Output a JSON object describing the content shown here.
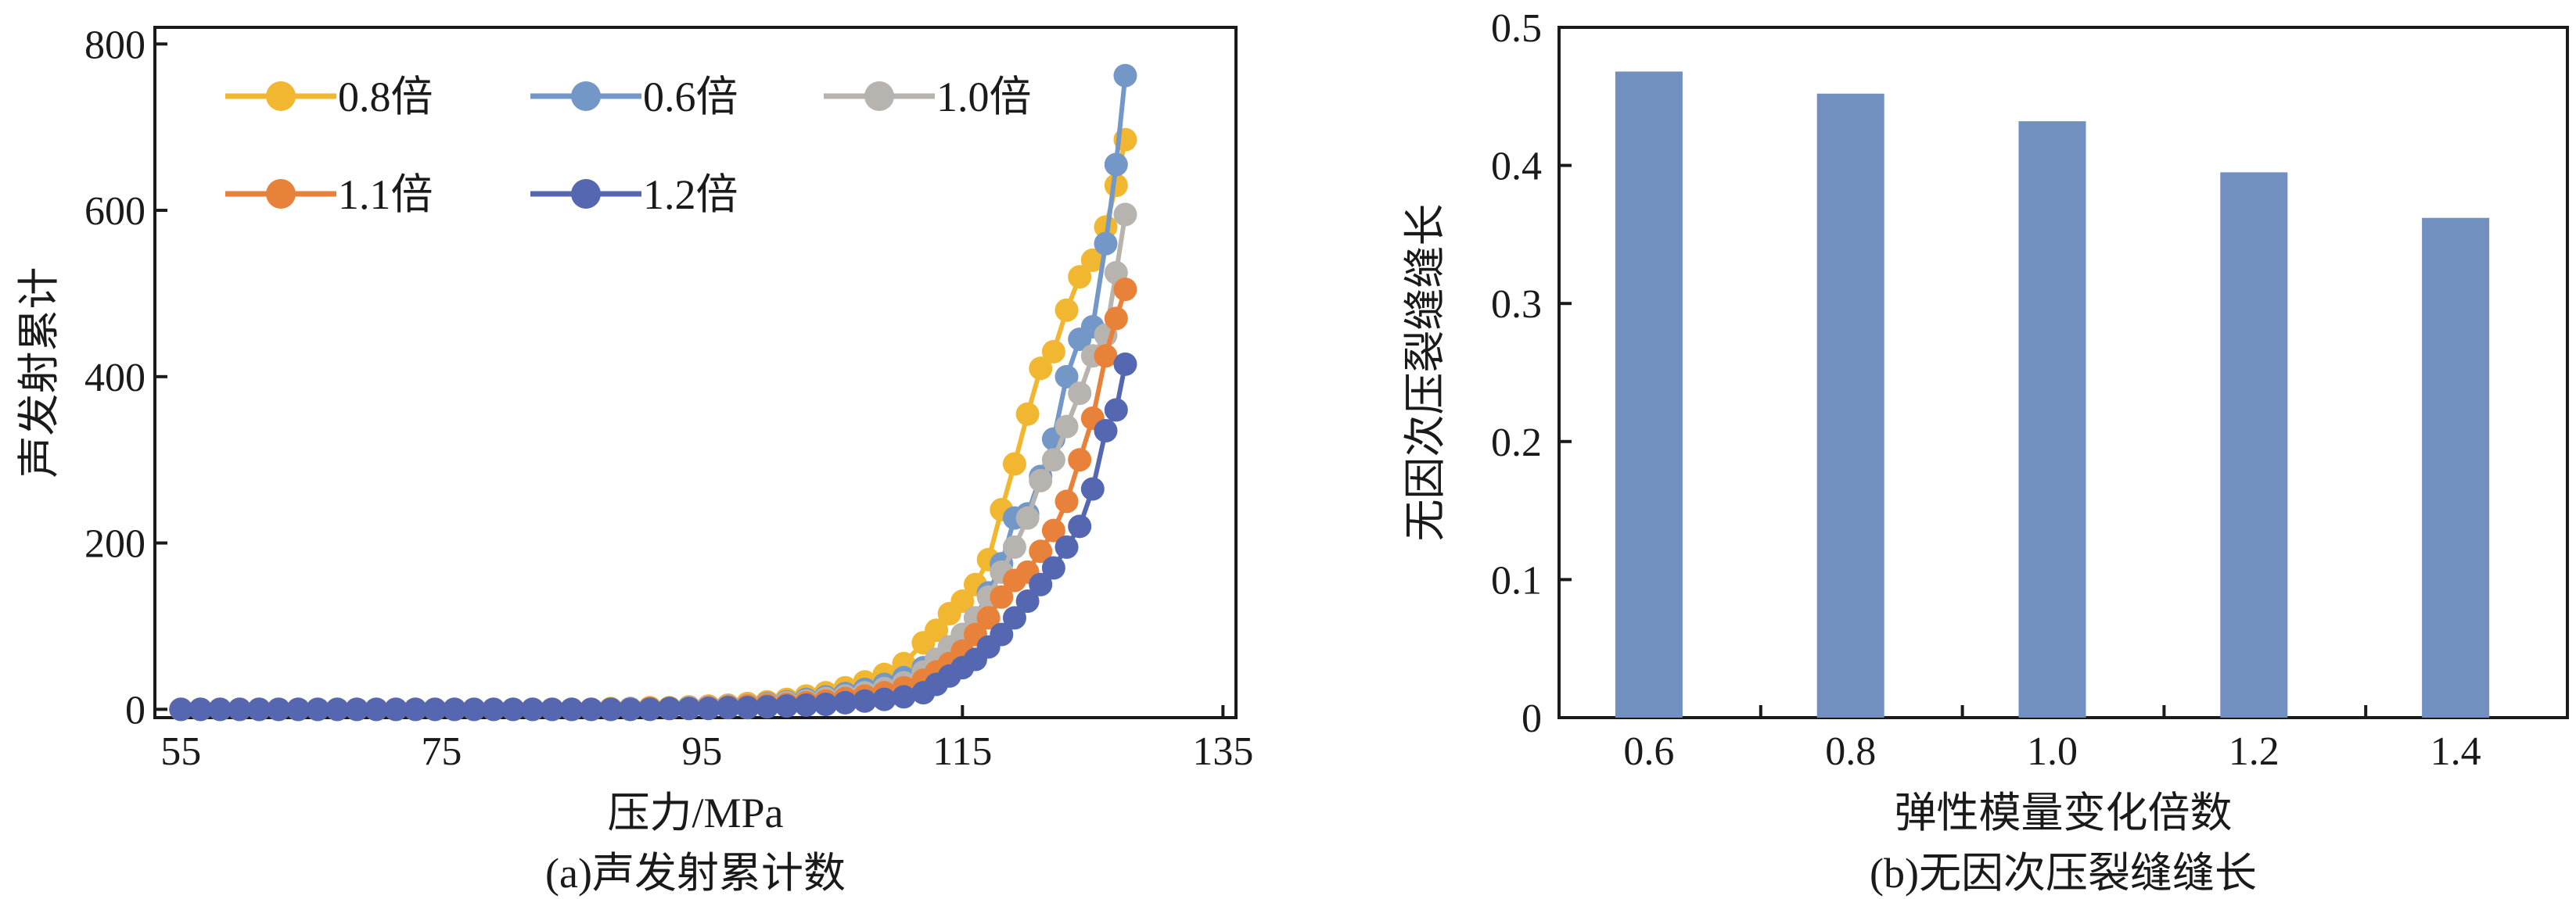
{
  "chart_data": [
    {
      "type": "line",
      "caption": "(a)声发射累计数",
      "xlabel": "压力/MPa",
      "ylabel": "声发射累计",
      "xlim": [
        53,
        136
      ],
      "ylim": [
        -10,
        820
      ],
      "xticks": [
        55,
        75,
        95,
        115,
        135
      ],
      "yticks": [
        0,
        200,
        400,
        600,
        800
      ],
      "grid": false,
      "legend_position": "top-left",
      "series": [
        {
          "name": "0.8倍",
          "color": "#F2B731",
          "x": [
            55,
            56.5,
            58,
            59.5,
            61,
            62.5,
            64,
            65.5,
            67,
            68.5,
            70,
            71.5,
            73,
            74.5,
            76,
            77.5,
            79,
            80.5,
            82,
            83.5,
            85,
            86.5,
            88,
            89.5,
            91,
            92.5,
            94,
            95.5,
            97,
            98.5,
            100,
            101.5,
            103,
            104.5,
            106,
            107.5,
            109,
            110.5,
            112,
            113,
            114,
            115,
            116,
            117,
            118,
            119,
            120,
            121,
            122,
            123,
            124,
            125,
            126,
            126.8,
            127.5
          ],
          "y": [
            0,
            0,
            0,
            0,
            0,
            0,
            0,
            0,
            0,
            0,
            0,
            0,
            0,
            0,
            0,
            0,
            0,
            0,
            0,
            0,
            0,
            0,
            1,
            1,
            2,
            2,
            3,
            4,
            5,
            7,
            9,
            12,
            16,
            20,
            26,
            33,
            42,
            55,
            80,
            95,
            115,
            130,
            150,
            180,
            240,
            295,
            355,
            410,
            430,
            480,
            520,
            540,
            580,
            630,
            685
          ]
        },
        {
          "name": "0.6倍",
          "color": "#7397C6",
          "x": [
            55,
            56.5,
            58,
            59.5,
            61,
            62.5,
            64,
            65.5,
            67,
            68.5,
            70,
            71.5,
            73,
            74.5,
            76,
            77.5,
            79,
            80.5,
            82,
            83.5,
            85,
            86.5,
            88,
            89.5,
            91,
            92.5,
            94,
            95.5,
            97,
            98.5,
            100,
            101.5,
            103,
            104.5,
            106,
            107.5,
            109,
            110.5,
            112,
            113,
            114,
            115,
            116,
            117,
            118,
            119,
            120,
            121,
            122,
            123,
            124,
            125,
            126,
            126.8,
            127.5
          ],
          "y": [
            0,
            0,
            0,
            0,
            0,
            0,
            0,
            0,
            0,
            0,
            0,
            0,
            0,
            0,
            0,
            0,
            0,
            0,
            0,
            0,
            0,
            0,
            0,
            1,
            1,
            1,
            2,
            3,
            4,
            5,
            7,
            9,
            12,
            15,
            19,
            24,
            30,
            38,
            50,
            60,
            75,
            90,
            110,
            140,
            175,
            230,
            235,
            280,
            325,
            400,
            445,
            460,
            560,
            655,
            762
          ]
        },
        {
          "name": "1.0倍",
          "color": "#B7B3AF",
          "x": [
            55,
            56.5,
            58,
            59.5,
            61,
            62.5,
            64,
            65.5,
            67,
            68.5,
            70,
            71.5,
            73,
            74.5,
            76,
            77.5,
            79,
            80.5,
            82,
            83.5,
            85,
            86.5,
            88,
            89.5,
            91,
            92.5,
            94,
            95.5,
            97,
            98.5,
            100,
            101.5,
            103,
            104.5,
            106,
            107.5,
            109,
            110.5,
            112,
            113,
            114,
            115,
            116,
            117,
            118,
            119,
            120,
            121,
            122,
            123,
            124,
            125,
            126,
            126.8,
            127.5
          ],
          "y": [
            0,
            0,
            0,
            0,
            0,
            0,
            0,
            0,
            0,
            0,
            0,
            0,
            0,
            0,
            0,
            0,
            0,
            0,
            0,
            0,
            0,
            0,
            0,
            1,
            1,
            1,
            2,
            3,
            4,
            5,
            6,
            8,
            10,
            13,
            16,
            20,
            25,
            32,
            45,
            60,
            75,
            90,
            110,
            135,
            165,
            195,
            230,
            275,
            300,
            340,
            380,
            425,
            450,
            525,
            595
          ]
        },
        {
          "name": "1.1倍",
          "color": "#E8823A",
          "x": [
            55,
            56.5,
            58,
            59.5,
            61,
            62.5,
            64,
            65.5,
            67,
            68.5,
            70,
            71.5,
            73,
            74.5,
            76,
            77.5,
            79,
            80.5,
            82,
            83.5,
            85,
            86.5,
            88,
            89.5,
            91,
            92.5,
            94,
            95.5,
            97,
            98.5,
            100,
            101.5,
            103,
            104.5,
            106,
            107.5,
            109,
            110.5,
            112,
            113,
            114,
            115,
            116,
            117,
            118,
            119,
            120,
            121,
            122,
            123,
            124,
            125,
            126,
            126.8,
            127.5
          ],
          "y": [
            0,
            0,
            0,
            0,
            0,
            0,
            0,
            0,
            0,
            0,
            0,
            0,
            0,
            0,
            0,
            0,
            0,
            0,
            0,
            0,
            0,
            0,
            0,
            0,
            1,
            1,
            1,
            2,
            3,
            4,
            5,
            6,
            8,
            10,
            13,
            16,
            20,
            26,
            35,
            45,
            55,
            70,
            90,
            110,
            135,
            155,
            165,
            190,
            215,
            250,
            300,
            350,
            425,
            470,
            505
          ]
        },
        {
          "name": "1.2倍",
          "color": "#5467B0",
          "x": [
            55,
            56.5,
            58,
            59.5,
            61,
            62.5,
            64,
            65.5,
            67,
            68.5,
            70,
            71.5,
            73,
            74.5,
            76,
            77.5,
            79,
            80.5,
            82,
            83.5,
            85,
            86.5,
            88,
            89.5,
            91,
            92.5,
            94,
            95.5,
            97,
            98.5,
            100,
            101.5,
            103,
            104.5,
            106,
            107.5,
            109,
            110.5,
            112,
            113,
            114,
            115,
            116,
            117,
            118,
            119,
            120,
            121,
            122,
            123,
            124,
            125,
            126,
            126.8,
            127.5
          ],
          "y": [
            0,
            0,
            0,
            0,
            0,
            0,
            0,
            0,
            0,
            0,
            0,
            0,
            0,
            0,
            0,
            0,
            0,
            0,
            0,
            0,
            0,
            0,
            0,
            0,
            0,
            1,
            1,
            1,
            2,
            2,
            3,
            4,
            5,
            6,
            8,
            10,
            12,
            15,
            20,
            30,
            40,
            50,
            60,
            75,
            90,
            110,
            130,
            150,
            170,
            195,
            220,
            265,
            335,
            360,
            415
          ]
        }
      ]
    },
    {
      "type": "bar",
      "caption": "(b)无因次压裂缝缝长",
      "xlabel": "弹性模量变化倍数",
      "ylabel": "无因次压裂缝缝长",
      "categories": [
        "0.6",
        "0.8",
        "1.0",
        "1.2",
        "1.4"
      ],
      "values": [
        0.468,
        0.452,
        0.432,
        0.395,
        0.362
      ],
      "ylim": [
        0,
        0.5
      ],
      "yticks": [
        "0",
        "0.1",
        "0.2",
        "0.3",
        "0.4",
        "0.5"
      ],
      "color": "#7190BF",
      "grid": false
    }
  ]
}
